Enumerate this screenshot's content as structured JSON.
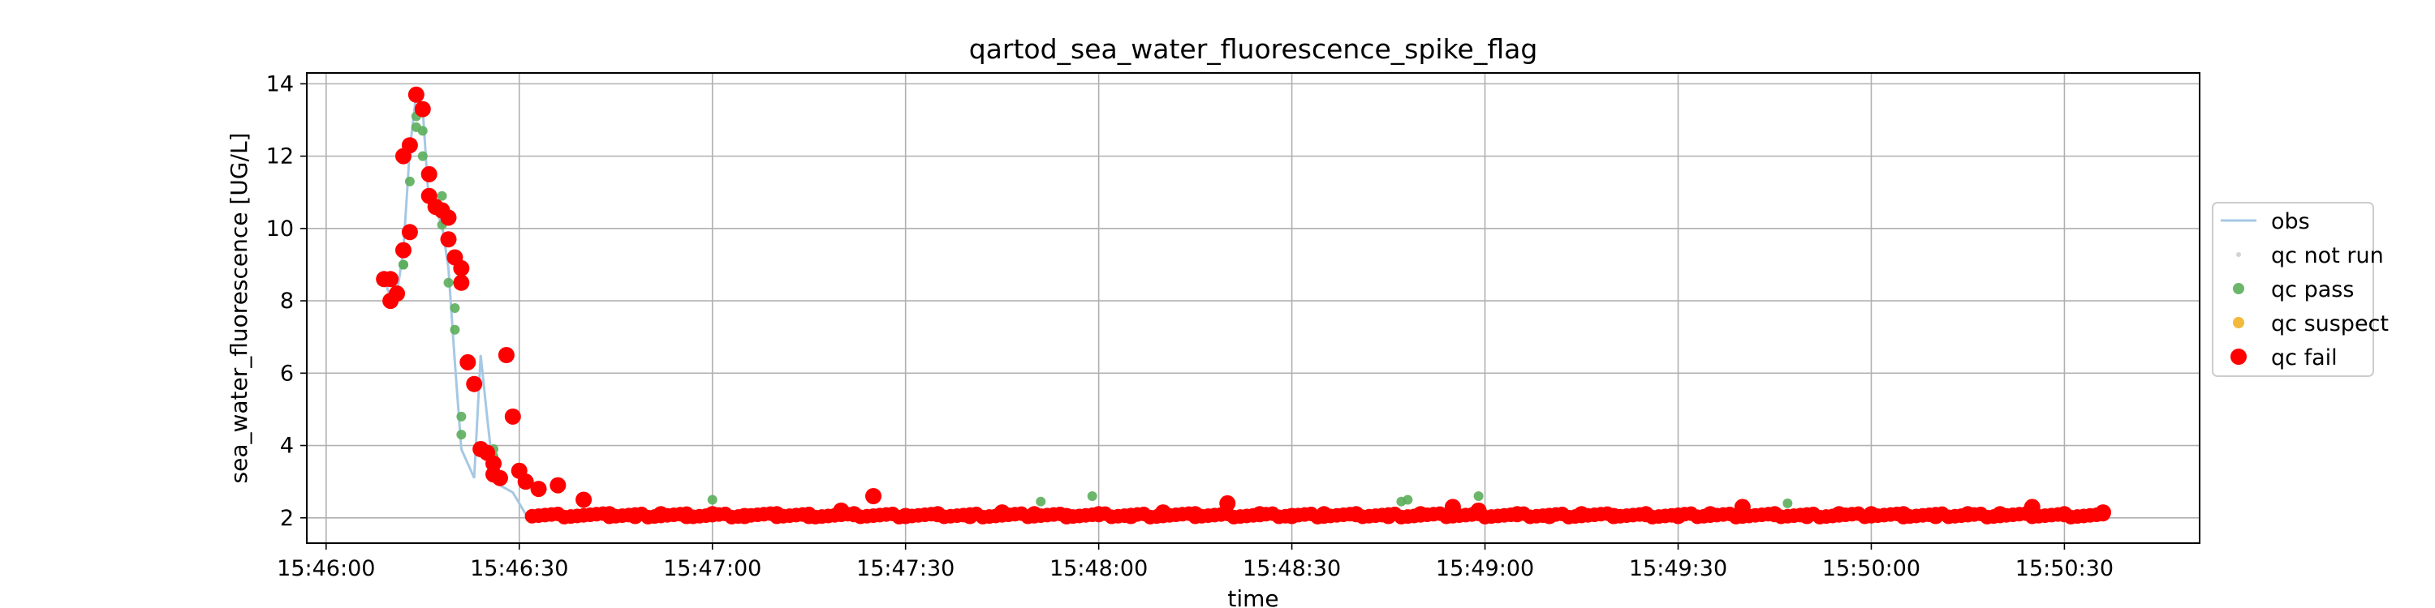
{
  "chart_data": {
    "type": "scatter",
    "title": "qartod_sea_water_fluorescence_spike_flag",
    "xlabel": "time",
    "ylabel": "sea_water_fluorescence [UG/L]",
    "x_unit": "time",
    "xlim": [
      "15:45:57",
      "15:50:51"
    ],
    "ylim": [
      1.3,
      14.3
    ],
    "x_ticks": [
      "15:46:00",
      "15:46:30",
      "15:47:00",
      "15:47:30",
      "15:48:00",
      "15:48:30",
      "15:49:00",
      "15:49:30",
      "15:50:00",
      "15:50:30"
    ],
    "y_ticks": [
      2,
      4,
      6,
      8,
      10,
      12,
      14
    ],
    "grid": true,
    "legend_position": "center-right",
    "colors": {
      "obs": "#a6c8e4",
      "qc_not_run": "#d3d3d3",
      "qc_pass": "#5cae5c",
      "qc_suspect": "#f2b93b",
      "qc_fail": "#ff0000"
    },
    "legend": [
      "obs",
      "qc not run",
      "qc pass",
      "qc suspect",
      "qc fail"
    ],
    "series": [
      {
        "name": "obs",
        "style": "line",
        "x": [
          "15:46:09",
          "15:46:10",
          "15:46:11",
          "15:46:12",
          "15:46:13",
          "15:46:14",
          "15:46:15",
          "15:46:16",
          "15:46:17",
          "15:46:18",
          "15:46:19",
          "15:46:20",
          "15:46:21",
          "15:46:22",
          "15:46:23",
          "15:46:24",
          "15:46:25",
          "15:46:26",
          "15:46:27",
          "15:46:28",
          "15:46:29",
          "15:46:30",
          "15:46:31",
          "15:46:32",
          "15:47:00",
          "15:47:30",
          "15:48:00",
          "15:48:30",
          "15:49:00",
          "15:49:30",
          "15:50:00",
          "15:50:36"
        ],
        "y": [
          8.6,
          8.1,
          8.2,
          9.4,
          12.2,
          13.7,
          13.3,
          10.6,
          10.5,
          10.1,
          8.9,
          6.3,
          3.9,
          3.5,
          3.1,
          6.5,
          4.8,
          3.2,
          2.9,
          2.8,
          2.7,
          2.4,
          2.1,
          2.05,
          2.1,
          2.05,
          2.1,
          2.05,
          2.1,
          2.05,
          2.1,
          2.15
        ]
      },
      {
        "name": "qc pass",
        "style": "points",
        "x": [
          "15:46:11",
          "15:46:12",
          "15:46:12",
          "15:46:13",
          "15:46:14",
          "15:46:14",
          "15:46:15",
          "15:46:15",
          "15:46:16",
          "15:46:18",
          "15:46:18",
          "15:46:19",
          "15:46:20",
          "15:46:20",
          "15:46:21",
          "15:46:21",
          "15:46:26",
          "15:46:26",
          "15:47:00",
          "15:47:51",
          "15:47:59",
          "15:48:47",
          "15:48:48",
          "15:48:59",
          "15:49:47"
        ],
        "y": [
          8.3,
          9.0,
          9.0,
          11.3,
          12.8,
          13.1,
          12.7,
          12.0,
          10.9,
          10.9,
          10.1,
          8.5,
          7.8,
          7.2,
          4.8,
          4.3,
          3.9,
          3.7,
          2.5,
          2.45,
          2.6,
          2.45,
          2.5,
          2.6,
          2.4
        ]
      },
      {
        "name": "qc fail",
        "style": "points",
        "x": [
          "15:46:09",
          "15:46:10",
          "15:46:10",
          "15:46:11",
          "15:46:12",
          "15:46:12",
          "15:46:13",
          "15:46:13",
          "15:46:14",
          "15:46:15",
          "15:46:16",
          "15:46:16",
          "15:46:17",
          "15:46:18",
          "15:46:19",
          "15:46:19",
          "15:46:20",
          "15:46:21",
          "15:46:21",
          "15:46:22",
          "15:46:23",
          "15:46:24",
          "15:46:25",
          "15:46:26",
          "15:46:26",
          "15:46:27",
          "15:46:28",
          "15:46:29",
          "15:46:30",
          "15:46:31",
          "15:46:33",
          "15:46:36",
          "15:46:40",
          "15:46:44",
          "15:46:48",
          "15:46:52",
          "15:46:56",
          "15:47:00",
          "15:47:05",
          "15:47:10",
          "15:47:15",
          "15:47:20",
          "15:47:22",
          "15:47:25",
          "15:47:30",
          "15:47:35",
          "15:47:40",
          "15:47:45",
          "15:47:50",
          "15:47:55",
          "15:48:00",
          "15:48:05",
          "15:48:10",
          "15:48:15",
          "15:48:20",
          "15:48:25",
          "15:48:30",
          "15:48:35",
          "15:48:40",
          "15:48:45",
          "15:48:50",
          "15:48:55",
          "15:48:59",
          "15:49:05",
          "15:49:10",
          "15:49:15",
          "15:49:20",
          "15:49:25",
          "15:49:30",
          "15:49:35",
          "15:49:40",
          "15:49:45",
          "15:49:50",
          "15:49:55",
          "15:50:00",
          "15:50:05",
          "15:50:10",
          "15:50:15",
          "15:50:20",
          "15:50:25",
          "15:50:30",
          "15:50:36"
        ],
        "y": [
          8.6,
          8.0,
          8.6,
          8.2,
          9.4,
          12.0,
          9.9,
          12.3,
          13.7,
          13.3,
          11.5,
          10.9,
          10.6,
          10.5,
          10.3,
          9.7,
          9.2,
          8.9,
          8.5,
          6.3,
          5.7,
          3.9,
          3.8,
          3.5,
          3.2,
          3.1,
          6.5,
          4.8,
          3.3,
          3.0,
          2.8,
          2.9,
          2.5,
          2.1,
          2.05,
          2.1,
          2.05,
          2.1,
          2.05,
          2.1,
          2.05,
          2.2,
          2.1,
          2.6,
          2.05,
          2.1,
          2.05,
          2.15,
          2.1,
          2.05,
          2.1,
          2.05,
          2.15,
          2.1,
          2.4,
          2.1,
          2.05,
          2.1,
          2.1,
          2.05,
          2.1,
          2.3,
          2.2,
          2.1,
          2.05,
          2.1,
          2.05,
          2.1,
          2.05,
          2.1,
          2.3,
          2.1,
          2.05,
          2.1,
          2.1,
          2.1,
          2.05,
          2.1,
          2.1,
          2.3,
          2.1,
          2.15
        ]
      },
      {
        "name": "qc suspect",
        "style": "points",
        "x": [],
        "y": []
      },
      {
        "name": "qc not run",
        "style": "points",
        "x": [],
        "y": []
      }
    ]
  }
}
